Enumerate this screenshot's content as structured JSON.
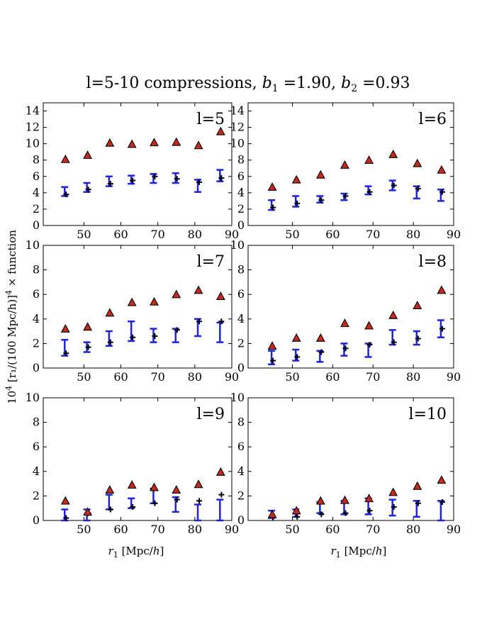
{
  "chart_data": {
    "type": "scatter",
    "title": "l=5-10 compressions, b₁ =1.90,  b₂ =0.93",
    "title_parts": {
      "prefix": "l=5-10 compressions, ",
      "b1_var": "b",
      "b1_sub": "1",
      "b1_val": " =1.90,  ",
      "b2_var": "b",
      "b2_sub": "2",
      "b2_val": " =0.93"
    },
    "xlabel": "r₁  [Mpc/h]",
    "xlabel_parts": {
      "var": "r",
      "sub": "1",
      "unit": "[Mpc/",
      "unit_var": "h",
      "unit_end": "]"
    },
    "ylabel": "10⁴ [r₁/(100  Mpc/h)]⁴ × function",
    "ylabel_parts": {
      "base": "10",
      "exp": "4",
      "mid": " [r₁/(100  Mpc/h)]",
      "exp2": "4",
      "end": " × function"
    },
    "xlim": [
      39,
      90
    ],
    "xticks": [
      50,
      60,
      70,
      80,
      90
    ],
    "x": [
      45,
      51,
      57,
      63,
      69,
      75,
      81,
      87
    ],
    "series_names": [
      "model (triangles)",
      "measurement (black crosses)",
      "blue error bars"
    ],
    "colors": {
      "triangle_fill": "#c8281e",
      "black": "#000000",
      "blue": "#1f24d8"
    },
    "panels": [
      {
        "label": "l=5",
        "ylim": [
          0,
          15
        ],
        "yticks": [
          0,
          2,
          4,
          6,
          8,
          10,
          12,
          14
        ],
        "triangles": [
          8.1,
          8.6,
          10.1,
          9.95,
          10.15,
          10.2,
          9.8,
          11.5
        ],
        "black": [
          3.8,
          4.4,
          5.1,
          5.5,
          6.0,
          5.7,
          5.3,
          5.8
        ],
        "blue_lo": [
          3.6,
          4.1,
          4.8,
          5.1,
          5.2,
          5.2,
          4.1,
          5.4
        ],
        "blue_hi": [
          4.7,
          5.2,
          6.0,
          6.1,
          6.3,
          6.4,
          5.6,
          6.8
        ]
      },
      {
        "label": "l=6",
        "ylim": [
          0,
          15
        ],
        "yticks": [
          0,
          2,
          4,
          6,
          8,
          10,
          12,
          14
        ],
        "triangles": [
          4.7,
          5.6,
          6.2,
          7.4,
          8.0,
          8.7,
          7.6,
          6.8
        ],
        "black": [
          2.2,
          2.7,
          3.1,
          3.6,
          4.1,
          4.9,
          4.5,
          4.1
        ],
        "blue_lo": [
          1.9,
          2.3,
          2.8,
          3.1,
          3.8,
          4.3,
          3.3,
          3.0
        ],
        "blue_hi": [
          3.1,
          3.6,
          3.6,
          3.9,
          4.8,
          5.5,
          4.8,
          4.4
        ]
      },
      {
        "label": "l=7",
        "ylim": [
          0,
          10
        ],
        "yticks": [
          0,
          2,
          4,
          6,
          8,
          10
        ],
        "triangles": [
          3.2,
          3.35,
          4.5,
          5.35,
          5.4,
          6.0,
          6.35,
          5.85
        ],
        "black": [
          1.2,
          1.7,
          2.1,
          2.5,
          2.6,
          3.1,
          3.8,
          3.8
        ],
        "blue_lo": [
          1.0,
          1.3,
          1.8,
          2.2,
          2.1,
          2.1,
          2.6,
          2.1
        ],
        "blue_hi": [
          2.3,
          2.1,
          3.0,
          3.8,
          3.2,
          3.2,
          4.0,
          3.7
        ]
      },
      {
        "label": "l=8",
        "ylim": [
          0,
          10
        ],
        "yticks": [
          0,
          2,
          4,
          6,
          8,
          10
        ],
        "triangles": [
          1.8,
          2.45,
          2.45,
          3.65,
          3.45,
          4.3,
          5.1,
          6.35
        ],
        "black": [
          0.6,
          0.9,
          1.3,
          1.6,
          1.9,
          2.1,
          2.4,
          3.2
        ],
        "blue_lo": [
          0.3,
          0.6,
          0.5,
          1.0,
          0.9,
          1.9,
          1.9,
          2.5
        ],
        "blue_hi": [
          1.4,
          1.5,
          1.4,
          2.0,
          2.0,
          3.1,
          3.0,
          3.9
        ]
      },
      {
        "label": "l=9",
        "ylim": [
          0,
          10
        ],
        "yticks": [
          0,
          2,
          4,
          6,
          8,
          10
        ],
        "triangles": [
          1.6,
          0.7,
          2.5,
          2.9,
          2.7,
          2.5,
          2.95,
          3.95
        ],
        "black": [
          0.2,
          0.6,
          0.9,
          1.1,
          1.4,
          1.7,
          1.6,
          2.1
        ],
        "blue_lo": [
          0.0,
          0.0,
          0.9,
          1.0,
          1.4,
          0.7,
          0.0,
          0.0
        ],
        "blue_hi": [
          0.9,
          0.9,
          2.1,
          1.8,
          2.6,
          1.9,
          1.3,
          1.7
        ]
      },
      {
        "label": "l=10",
        "ylim": [
          0,
          10
        ],
        "yticks": [
          0,
          2,
          4,
          6,
          8,
          10
        ],
        "triangles": [
          0.5,
          0.8,
          1.6,
          1.65,
          1.8,
          2.3,
          2.8,
          3.3
        ],
        "black": [
          0.25,
          0.3,
          0.5,
          0.6,
          0.8,
          1.1,
          1.4,
          1.5
        ],
        "blue_lo": [
          0.2,
          0.3,
          0.6,
          0.5,
          0.5,
          0.4,
          0.3,
          0.0
        ],
        "blue_hi": [
          0.8,
          0.9,
          1.5,
          1.6,
          1.8,
          1.7,
          1.6,
          1.6
        ]
      }
    ]
  }
}
